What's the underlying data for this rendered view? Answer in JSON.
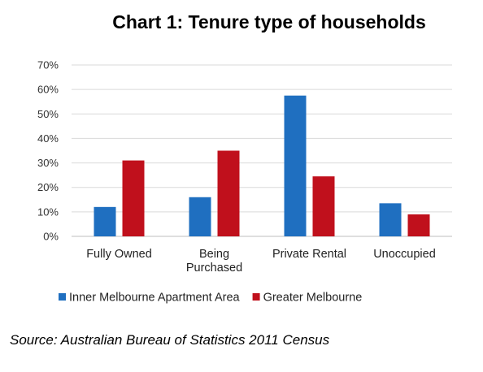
{
  "chart_data": {
    "type": "bar",
    "title": "Chart 1: Tenure type of households",
    "categories": [
      "Fully Owned",
      "Being Purchased",
      "Private Rental",
      "Unoccupied"
    ],
    "category_lines": [
      [
        "Fully Owned"
      ],
      [
        "Being",
        "Purchased"
      ],
      [
        "Private Rental"
      ],
      [
        "Unoccupied"
      ]
    ],
    "series": [
      {
        "name": "Inner Melbourne Apartment Area",
        "color": "#1f6fc0",
        "values": [
          12,
          16,
          57.5,
          13.5
        ]
      },
      {
        "name": "Greater Melbourne",
        "color": "#c0101c",
        "values": [
          31,
          35,
          24.5,
          9
        ]
      }
    ],
    "y_ticks": [
      "0%",
      "10%",
      "20%",
      "30%",
      "40%",
      "50%",
      "60%",
      "70%"
    ],
    "ylim": [
      0,
      70
    ],
    "grid": true,
    "legend_position": "bottom"
  },
  "source": "Source: Australian Bureau of Statistics 2011 Census"
}
